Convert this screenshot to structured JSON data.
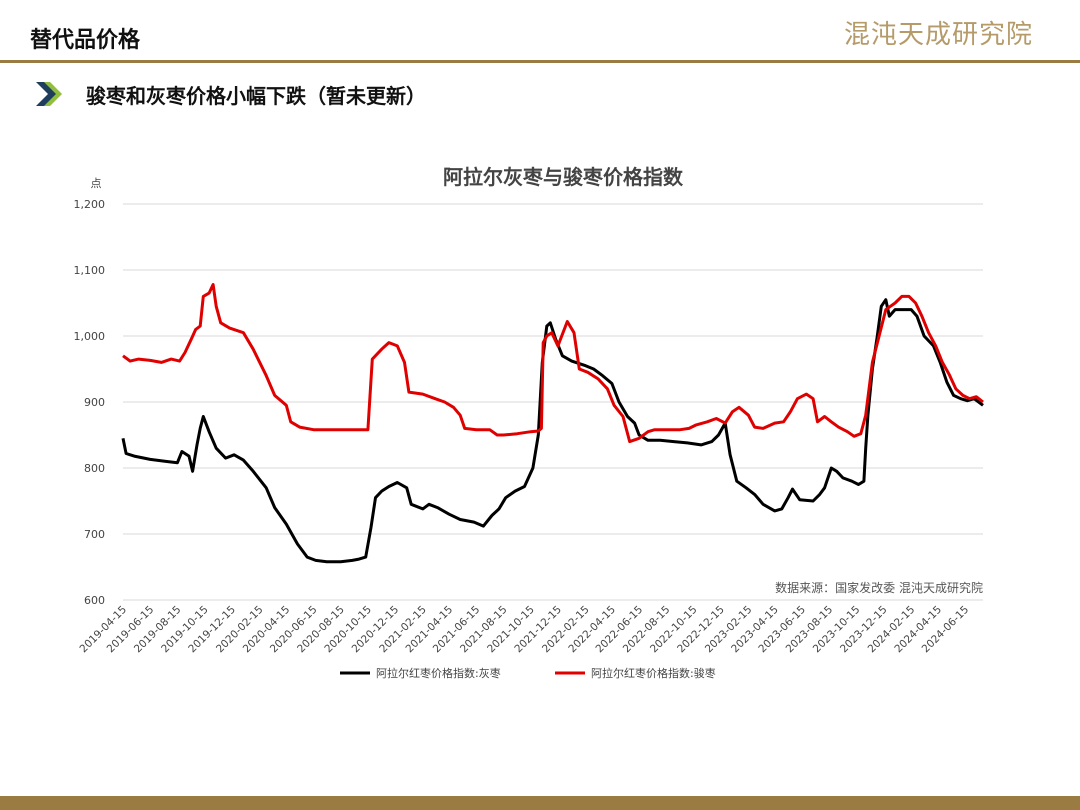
{
  "header": {
    "title": "替代品价格",
    "logo_text": "混沌天成研究院"
  },
  "subtitle": "骏枣和灰枣价格小幅下跌（暂未更新）",
  "colors": {
    "accent": "#9a7c43",
    "series_grey": "#000000",
    "series_red": "#e00000",
    "arrow_dark": "#1f3d5c",
    "arrow_light": "#8fbf3c"
  },
  "chart_data": {
    "type": "line",
    "title": "阿拉尔灰枣与骏枣价格指数",
    "ylabel": "点",
    "ylim": [
      600,
      1200
    ],
    "yticks": [
      "600",
      "700",
      "800",
      "900",
      "1,000",
      "1,100",
      "1,200"
    ],
    "ytick_values": [
      600,
      700,
      800,
      900,
      1000,
      1100,
      1200
    ],
    "xlim": [
      "2019-04-15",
      "2024-07-25"
    ],
    "xticks": [
      "2019-04-15",
      "2019-06-15",
      "2019-08-15",
      "2019-10-15",
      "2019-12-15",
      "2020-02-15",
      "2020-04-15",
      "2020-06-15",
      "2020-08-15",
      "2020-10-15",
      "2020-12-15",
      "2021-02-15",
      "2021-04-15",
      "2021-06-15",
      "2021-08-15",
      "2021-10-15",
      "2021-12-15",
      "2022-02-15",
      "2022-04-15",
      "2022-06-15",
      "2022-08-15",
      "2022-10-15",
      "2022-12-15",
      "2023-02-15",
      "2023-04-15",
      "2023-06-15",
      "2023-08-15",
      "2023-10-15",
      "2023-12-15",
      "2024-02-15",
      "2024-04-15",
      "2024-06-15"
    ],
    "grid": true,
    "legend_position": "bottom",
    "source_note": "数据来源：国家发改委  混沌天成研究院",
    "series": [
      {
        "name": "阿拉尔红枣价格指数:灰枣",
        "color": "#000000",
        "points": [
          [
            "2019-04-15",
            845
          ],
          [
            "2019-04-22",
            822
          ],
          [
            "2019-05-10",
            818
          ],
          [
            "2019-06-15",
            813
          ],
          [
            "2019-07-20",
            810
          ],
          [
            "2019-08-15",
            808
          ],
          [
            "2019-08-25",
            825
          ],
          [
            "2019-09-10",
            818
          ],
          [
            "2019-09-18",
            795
          ],
          [
            "2019-09-28",
            835
          ],
          [
            "2019-10-05",
            860
          ],
          [
            "2019-10-12",
            878
          ],
          [
            "2019-10-25",
            855
          ],
          [
            "2019-11-10",
            830
          ],
          [
            "2019-12-01",
            815
          ],
          [
            "2019-12-20",
            820
          ],
          [
            "2020-01-10",
            812
          ],
          [
            "2020-02-01",
            795
          ],
          [
            "2020-03-01",
            770
          ],
          [
            "2020-03-20",
            740
          ],
          [
            "2020-04-15",
            715
          ],
          [
            "2020-05-10",
            685
          ],
          [
            "2020-06-01",
            665
          ],
          [
            "2020-06-20",
            660
          ],
          [
            "2020-07-15",
            658
          ],
          [
            "2020-08-15",
            658
          ],
          [
            "2020-09-10",
            660
          ],
          [
            "2020-09-25",
            662
          ],
          [
            "2020-10-10",
            665
          ],
          [
            "2020-10-22",
            710
          ],
          [
            "2020-11-01",
            755
          ],
          [
            "2020-11-15",
            765
          ],
          [
            "2020-12-01",
            772
          ],
          [
            "2020-12-20",
            778
          ],
          [
            "2021-01-10",
            770
          ],
          [
            "2021-01-20",
            745
          ],
          [
            "2021-02-15",
            738
          ],
          [
            "2021-03-01",
            745
          ],
          [
            "2021-03-20",
            740
          ],
          [
            "2021-04-15",
            730
          ],
          [
            "2021-05-10",
            722
          ],
          [
            "2021-06-10",
            718
          ],
          [
            "2021-07-01",
            712
          ],
          [
            "2021-07-20",
            728
          ],
          [
            "2021-08-05",
            738
          ],
          [
            "2021-08-20",
            755
          ],
          [
            "2021-09-10",
            765
          ],
          [
            "2021-10-01",
            772
          ],
          [
            "2021-10-20",
            800
          ],
          [
            "2021-11-01",
            850
          ],
          [
            "2021-11-10",
            960
          ],
          [
            "2021-11-20",
            1015
          ],
          [
            "2021-11-28",
            1020
          ],
          [
            "2021-12-10",
            995
          ],
          [
            "2021-12-25",
            970
          ],
          [
            "2022-01-15",
            962
          ],
          [
            "2022-02-15",
            955
          ],
          [
            "2022-03-05",
            950
          ],
          [
            "2022-03-25",
            940
          ],
          [
            "2022-04-15",
            928
          ],
          [
            "2022-05-01",
            900
          ],
          [
            "2022-05-20",
            878
          ],
          [
            "2022-06-05",
            868
          ],
          [
            "2022-06-15",
            850
          ],
          [
            "2022-07-05",
            842
          ],
          [
            "2022-08-01",
            842
          ],
          [
            "2022-09-01",
            840
          ],
          [
            "2022-10-01",
            838
          ],
          [
            "2022-11-01",
            835
          ],
          [
            "2022-11-25",
            840
          ],
          [
            "2022-12-10",
            850
          ],
          [
            "2022-12-25",
            868
          ],
          [
            "2023-01-05",
            820
          ],
          [
            "2023-01-20",
            780
          ],
          [
            "2023-02-10",
            770
          ],
          [
            "2023-03-01",
            760
          ],
          [
            "2023-03-20",
            745
          ],
          [
            "2023-04-15",
            735
          ],
          [
            "2023-05-01",
            738
          ],
          [
            "2023-05-15",
            755
          ],
          [
            "2023-05-25",
            768
          ],
          [
            "2023-06-10",
            752
          ],
          [
            "2023-07-10",
            750
          ],
          [
            "2023-07-25",
            760
          ],
          [
            "2023-08-05",
            770
          ],
          [
            "2023-08-20",
            800
          ],
          [
            "2023-09-01",
            795
          ],
          [
            "2023-09-15",
            785
          ],
          [
            "2023-10-05",
            780
          ],
          [
            "2023-10-20",
            775
          ],
          [
            "2023-11-01",
            780
          ],
          [
            "2023-11-05",
            830
          ],
          [
            "2023-11-10",
            880
          ],
          [
            "2023-11-20",
            950
          ],
          [
            "2023-12-01",
            1000
          ],
          [
            "2023-12-10",
            1045
          ],
          [
            "2023-12-20",
            1055
          ],
          [
            "2023-12-28",
            1030
          ],
          [
            "2024-01-10",
            1040
          ],
          [
            "2024-02-15",
            1040
          ],
          [
            "2024-02-28",
            1030
          ],
          [
            "2024-03-15",
            1000
          ],
          [
            "2024-04-05",
            985
          ],
          [
            "2024-04-20",
            960
          ],
          [
            "2024-05-05",
            930
          ],
          [
            "2024-05-20",
            910
          ],
          [
            "2024-06-05",
            905
          ],
          [
            "2024-06-20",
            902
          ],
          [
            "2024-07-05",
            905
          ],
          [
            "2024-07-25",
            895
          ]
        ]
      },
      {
        "name": "阿拉尔红枣价格指数:骏枣",
        "color": "#e00000",
        "points": [
          [
            "2019-04-15",
            970
          ],
          [
            "2019-05-01",
            962
          ],
          [
            "2019-05-20",
            965
          ],
          [
            "2019-06-15",
            963
          ],
          [
            "2019-07-10",
            960
          ],
          [
            "2019-08-01",
            965
          ],
          [
            "2019-08-20",
            962
          ],
          [
            "2019-09-01",
            975
          ],
          [
            "2019-09-15",
            995
          ],
          [
            "2019-09-25",
            1010
          ],
          [
            "2019-10-05",
            1015
          ],
          [
            "2019-10-12",
            1060
          ],
          [
            "2019-10-25",
            1065
          ],
          [
            "2019-11-03",
            1078
          ],
          [
            "2019-11-10",
            1045
          ],
          [
            "2019-11-20",
            1020
          ],
          [
            "2019-12-10",
            1012
          ],
          [
            "2020-01-10",
            1005
          ],
          [
            "2020-02-01",
            980
          ],
          [
            "2020-03-01",
            940
          ],
          [
            "2020-03-20",
            910
          ],
          [
            "2020-04-15",
            895
          ],
          [
            "2020-04-25",
            870
          ],
          [
            "2020-05-15",
            862
          ],
          [
            "2020-06-15",
            858
          ],
          [
            "2020-07-15",
            858
          ],
          [
            "2020-08-15",
            858
          ],
          [
            "2020-09-15",
            858
          ],
          [
            "2020-10-15",
            858
          ],
          [
            "2020-10-25",
            965
          ],
          [
            "2020-11-15",
            980
          ],
          [
            "2020-12-01",
            990
          ],
          [
            "2020-12-20",
            985
          ],
          [
            "2021-01-05",
            960
          ],
          [
            "2021-01-15",
            915
          ],
          [
            "2021-02-15",
            912
          ],
          [
            "2021-03-15",
            905
          ],
          [
            "2021-04-05",
            900
          ],
          [
            "2021-04-25",
            892
          ],
          [
            "2021-05-10",
            880
          ],
          [
            "2021-05-20",
            860
          ],
          [
            "2021-06-15",
            858
          ],
          [
            "2021-07-15",
            858
          ],
          [
            "2021-08-01",
            850
          ],
          [
            "2021-08-15",
            850
          ],
          [
            "2021-09-15",
            852
          ],
          [
            "2021-10-15",
            855
          ],
          [
            "2021-11-01",
            856
          ],
          [
            "2021-11-08",
            860
          ],
          [
            "2021-11-12",
            990
          ],
          [
            "2021-11-20",
            1000
          ],
          [
            "2021-12-01",
            1005
          ],
          [
            "2021-12-15",
            985
          ],
          [
            "2022-01-05",
            1022
          ],
          [
            "2022-01-20",
            1005
          ],
          [
            "2022-02-01",
            950
          ],
          [
            "2022-02-20",
            945
          ],
          [
            "2022-03-15",
            935
          ],
          [
            "2022-04-05",
            920
          ],
          [
            "2022-04-20",
            895
          ],
          [
            "2022-05-10",
            878
          ],
          [
            "2022-05-25",
            840
          ],
          [
            "2022-06-15",
            845
          ],
          [
            "2022-07-05",
            855
          ],
          [
            "2022-07-20",
            858
          ],
          [
            "2022-08-15",
            858
          ],
          [
            "2022-09-15",
            858
          ],
          [
            "2022-10-05",
            860
          ],
          [
            "2022-10-20",
            865
          ],
          [
            "2022-11-15",
            870
          ],
          [
            "2022-12-05",
            875
          ],
          [
            "2022-12-25",
            868
          ],
          [
            "2023-01-10",
            885
          ],
          [
            "2023-01-25",
            892
          ],
          [
            "2023-02-15",
            880
          ],
          [
            "2023-03-01",
            862
          ],
          [
            "2023-03-20",
            860
          ],
          [
            "2023-04-15",
            868
          ],
          [
            "2023-05-05",
            870
          ],
          [
            "2023-05-20",
            885
          ],
          [
            "2023-06-05",
            905
          ],
          [
            "2023-06-25",
            912
          ],
          [
            "2023-07-10",
            905
          ],
          [
            "2023-07-20",
            870
          ],
          [
            "2023-08-05",
            878
          ],
          [
            "2023-08-20",
            870
          ],
          [
            "2023-09-05",
            862
          ],
          [
            "2023-09-25",
            855
          ],
          [
            "2023-10-10",
            848
          ],
          [
            "2023-10-25",
            852
          ],
          [
            "2023-11-05",
            880
          ],
          [
            "2023-11-20",
            960
          ],
          [
            "2023-12-05",
            1000
          ],
          [
            "2023-12-20",
            1040
          ],
          [
            "2024-01-10",
            1050
          ],
          [
            "2024-01-25",
            1060
          ],
          [
            "2024-02-10",
            1060
          ],
          [
            "2024-02-25",
            1050
          ],
          [
            "2024-03-10",
            1030
          ],
          [
            "2024-03-25",
            1005
          ],
          [
            "2024-04-10",
            985
          ],
          [
            "2024-04-25",
            960
          ],
          [
            "2024-05-10",
            942
          ],
          [
            "2024-05-25",
            920
          ],
          [
            "2024-06-10",
            910
          ],
          [
            "2024-06-25",
            905
          ],
          [
            "2024-07-10",
            908
          ],
          [
            "2024-07-25",
            900
          ]
        ]
      }
    ]
  }
}
